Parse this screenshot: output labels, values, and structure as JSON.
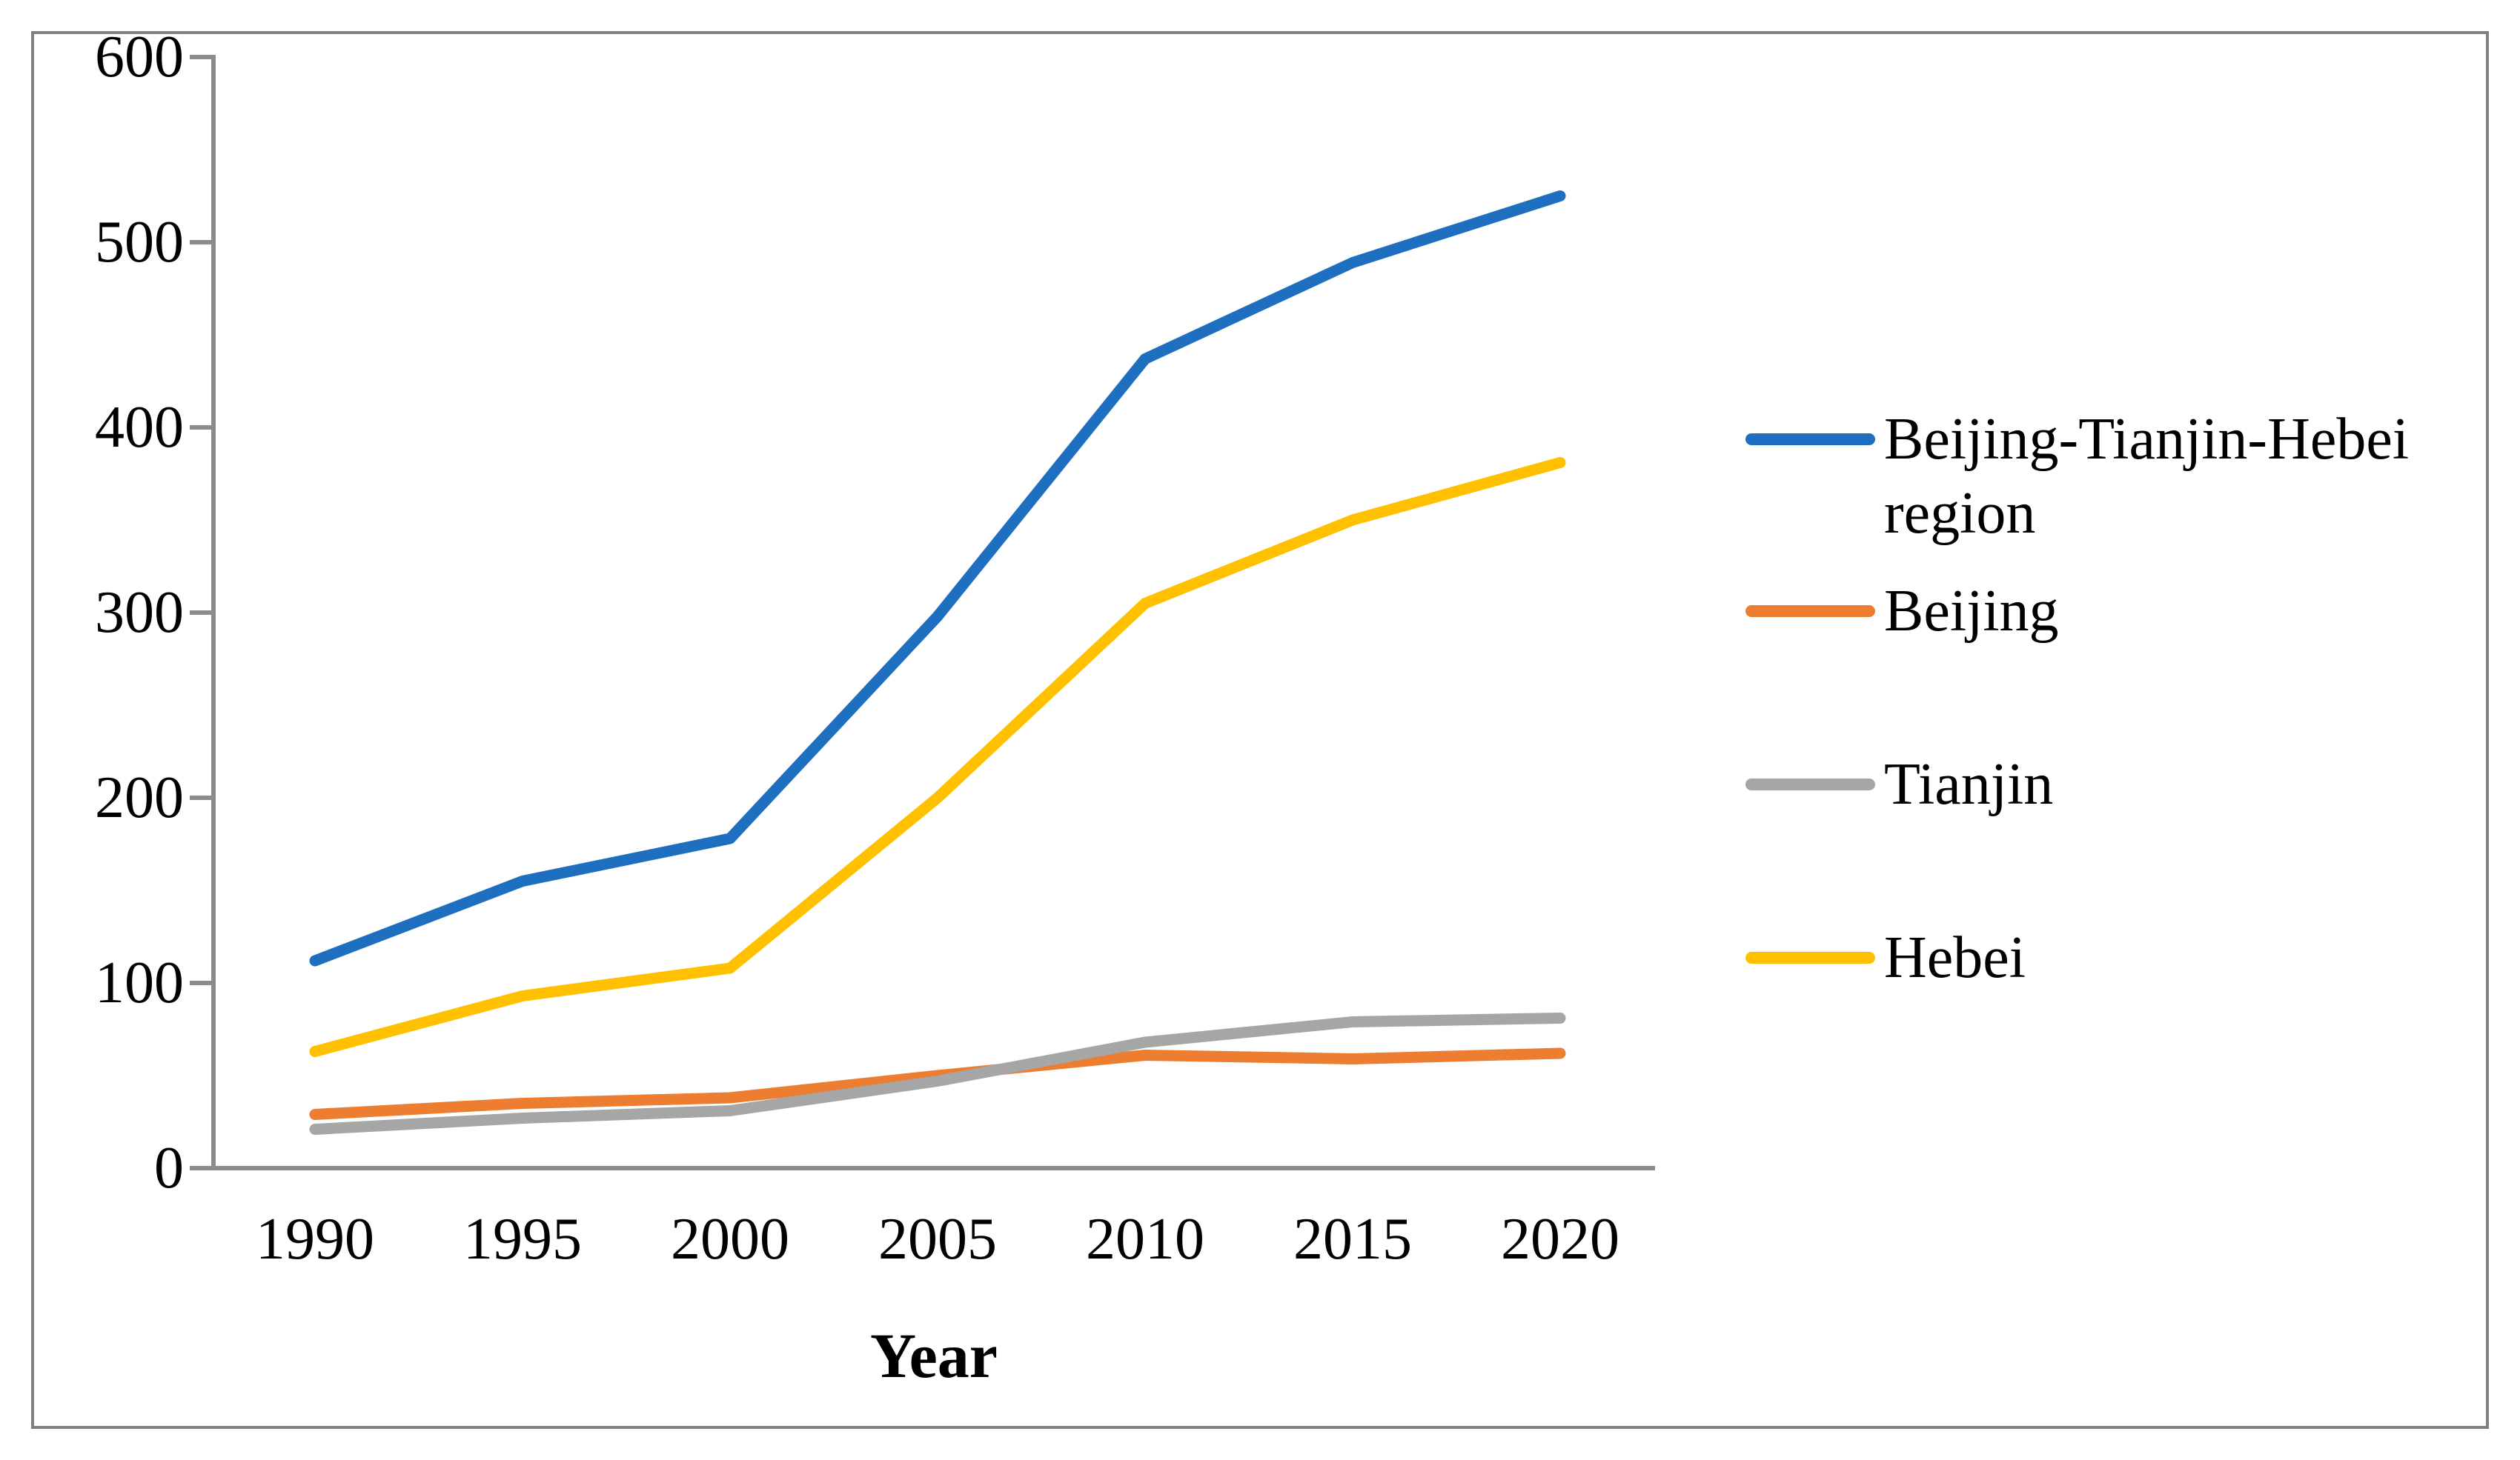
{
  "chart_data": {
    "type": "line",
    "title": "",
    "xlabel": "Year",
    "ylabel": "",
    "x": [
      1990,
      1995,
      2000,
      2005,
      2010,
      2015,
      2020
    ],
    "x_tick_labels": [
      "1990",
      "1995",
      "2000",
      "2005",
      "2010",
      "2015",
      "2020"
    ],
    "y_tick_labels": [
      "600",
      "500",
      "400",
      "300",
      "200",
      "100",
      "0"
    ],
    "ylim": [
      0,
      600
    ],
    "ytick_step": 100,
    "grid": false,
    "legend_position": "right",
    "series": [
      {
        "name": "Beijing-Tianjin-Hebei region",
        "color": "#1E6FC0",
        "values": [
          112,
          155,
          178,
          298,
          437,
          489,
          525
        ]
      },
      {
        "name": "Beijing",
        "color": "#ED7D31",
        "values": [
          29,
          35,
          38,
          50,
          61,
          59,
          62
        ]
      },
      {
        "name": "Tianjin",
        "color": "#A6A6A6",
        "values": [
          21,
          27,
          31,
          47,
          68,
          79,
          81
        ]
      },
      {
        "name": "Hebei",
        "color": "#FFC000",
        "values": [
          63,
          93,
          108,
          200,
          305,
          350,
          381
        ]
      }
    ],
    "legend": [
      {
        "line1": "Beijing-Tianjin-Hebei",
        "line2": "region"
      },
      {
        "line1": "Beijing",
        "line2": ""
      },
      {
        "line1": "Tianjin",
        "line2": ""
      },
      {
        "line1": "Hebei",
        "line2": ""
      }
    ]
  }
}
